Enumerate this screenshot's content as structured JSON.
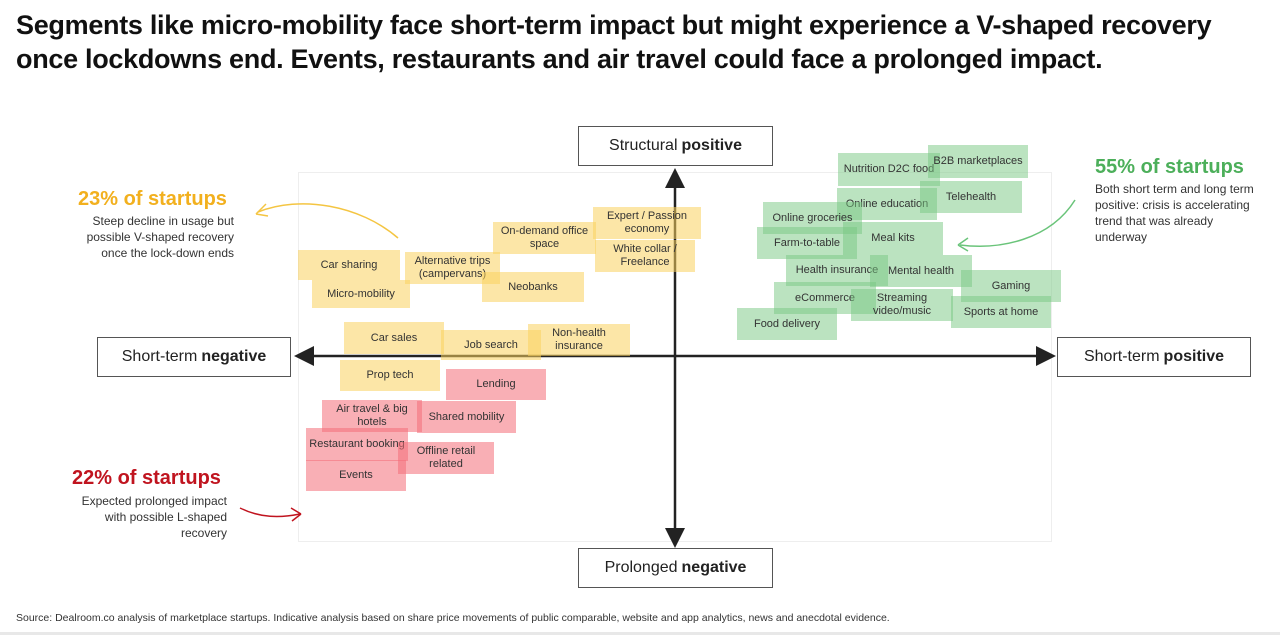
{
  "headline": "Segments like micro-mobility face short-term impact but might experience a V-shaped recovery once lockdowns end. Events, restaurants and air travel could face a prolonged impact.",
  "axes": {
    "top": {
      "prefix": "Structural",
      "emph": "positive"
    },
    "bottom": {
      "prefix": "Prolonged",
      "emph": "negative"
    },
    "left": {
      "prefix": "Short-term",
      "emph": "negative"
    },
    "right": {
      "prefix": "Short-term",
      "emph": "positive"
    }
  },
  "callouts": {
    "yellow": {
      "title": "23% of startups",
      "text": "Steep decline in usage but possible V-shaped recovery once the lock-down ends",
      "color": "#f2b01e"
    },
    "red": {
      "title": "22% of startups",
      "text": "Expected prolonged impact with possible L-shaped recovery",
      "color": "#c0141f"
    },
    "green": {
      "title": "55% of startups",
      "text": "Both short term and long term positive: crisis is accelerating trend that was already underway",
      "color": "#4caf5a"
    }
  },
  "segments": {
    "yellow": [
      "Car sharing",
      "Micro-mobility",
      "Alternative trips (campervans)",
      "Neobanks",
      "On-demand office space",
      "Expert / Passion economy",
      "White collar / Freelance",
      "Car sales",
      "Job search",
      "Non-health insurance",
      "Prop tech"
    ],
    "red": [
      "Lending",
      "Air travel & big hotels",
      "Shared mobility",
      "Restaurant booking",
      "Offline retail related",
      "Events"
    ],
    "green": [
      "Nutrition D2C food",
      "B2B marketplaces",
      "Online education",
      "Telehealth",
      "Online groceries",
      "Farm-to-table",
      "Meal kits",
      "Health insurance",
      "Mental health",
      "Gaming",
      "eCommerce",
      "Streaming video/music",
      "Sports at home",
      "Food delivery"
    ]
  },
  "source": "Source: Dealroom.co analysis of marketplace startups. Indicative analysis based on share price movements of public comparable, website and app analytics, news and anecdotal evidence."
}
